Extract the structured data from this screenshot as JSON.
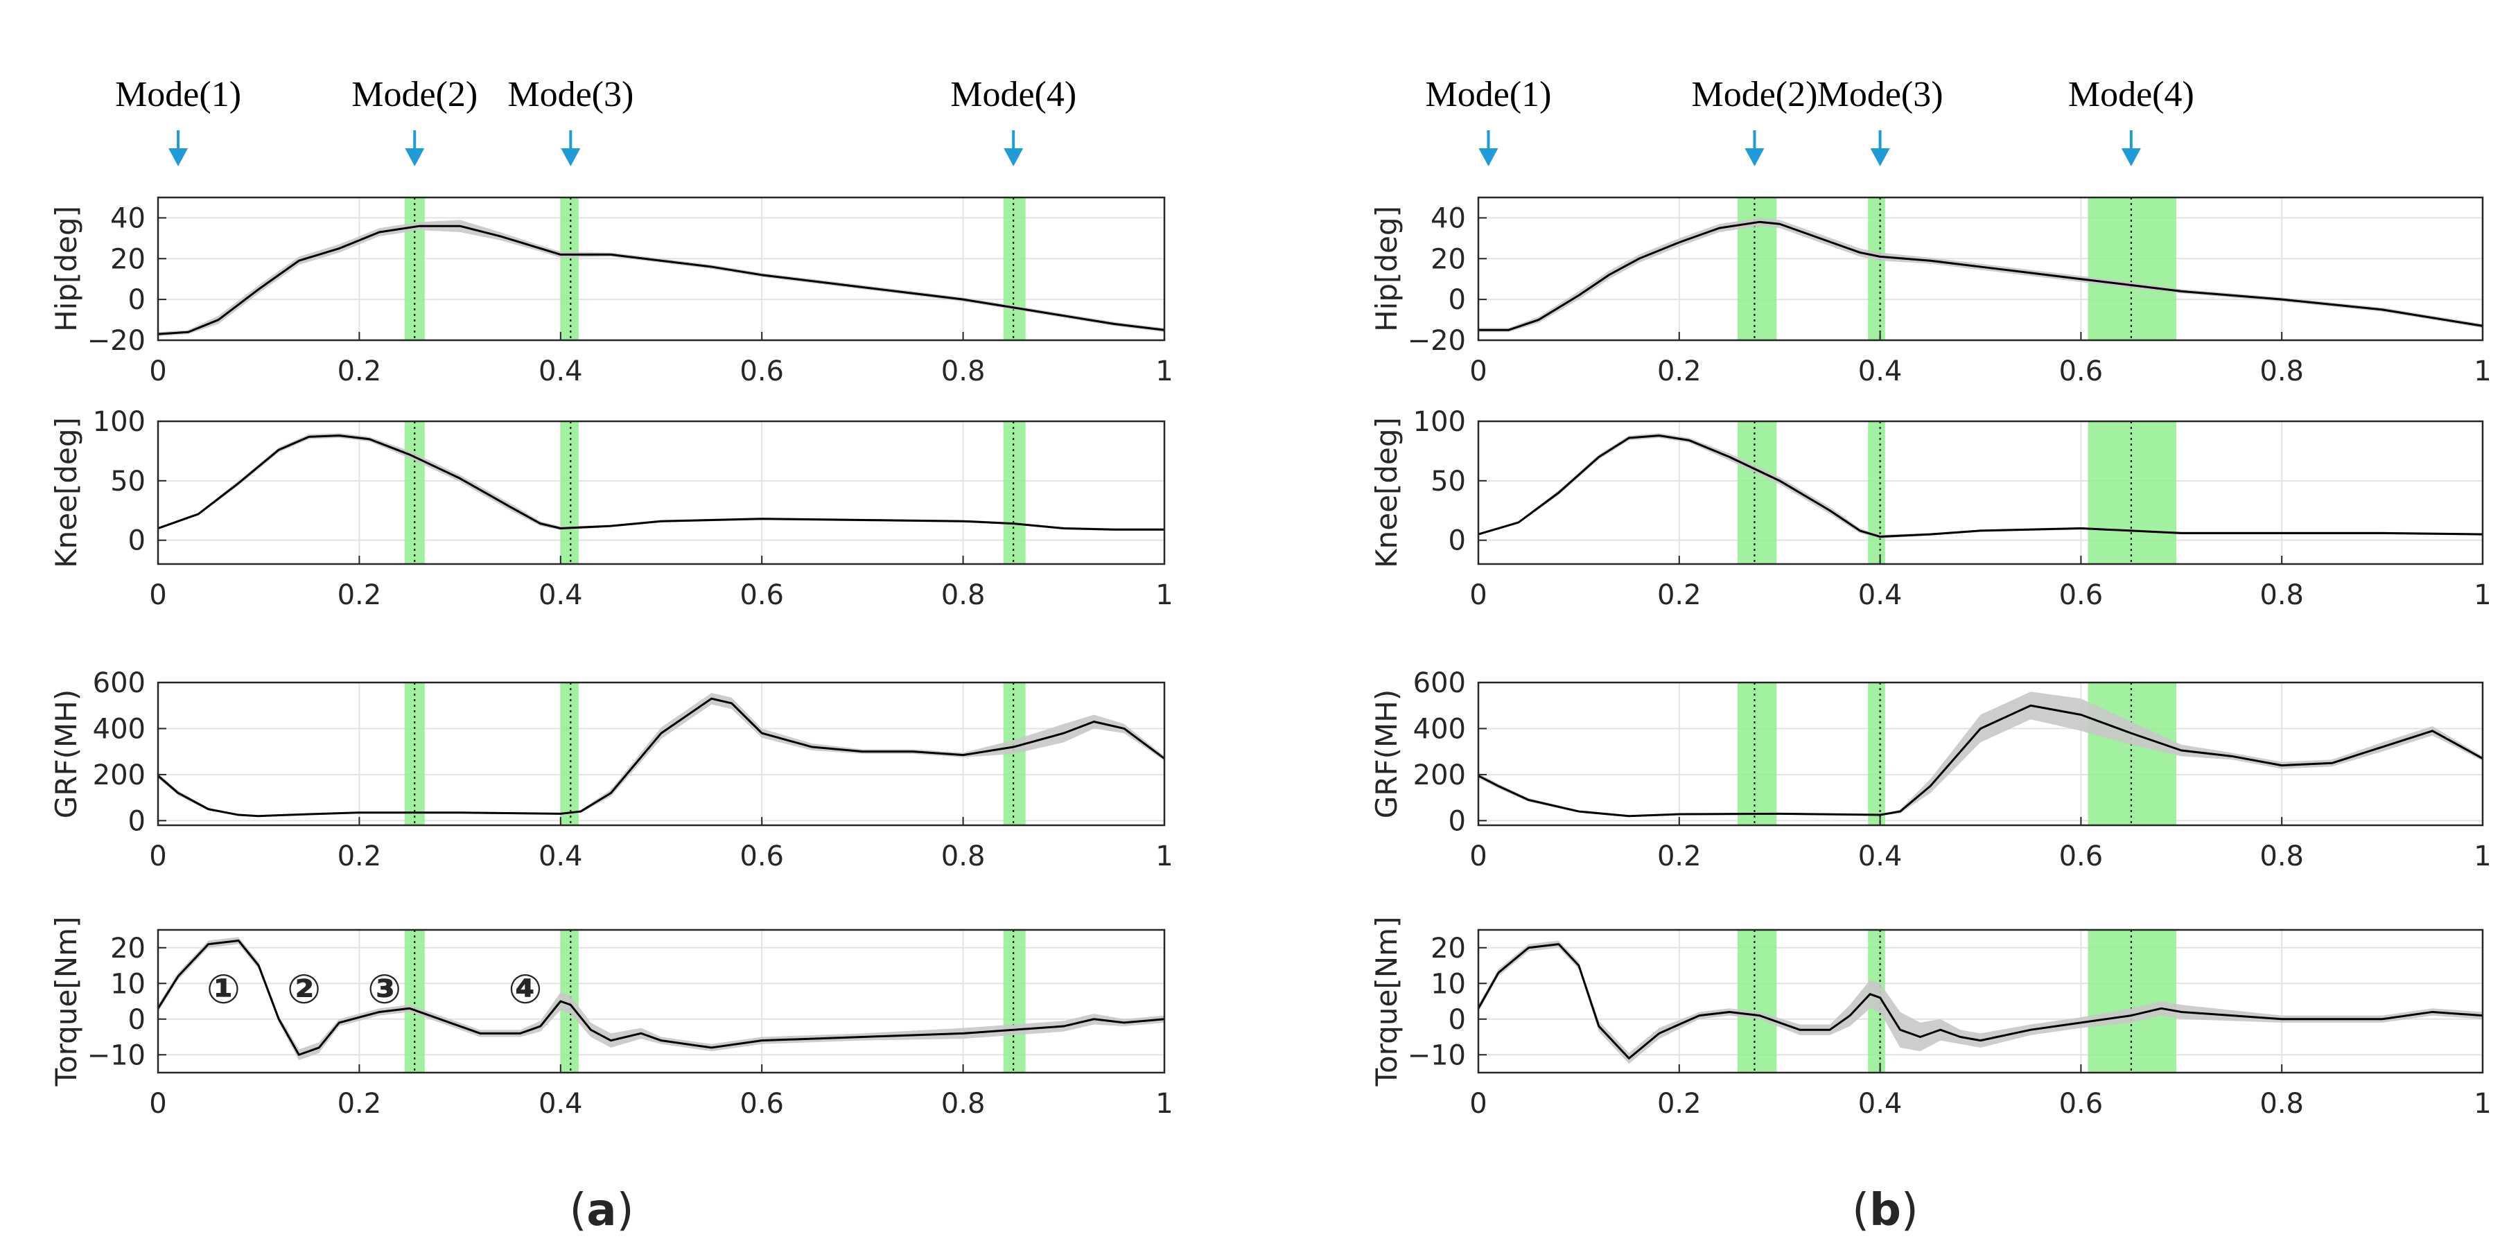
{
  "figure": {
    "panel_labels": [
      "(a)",
      "(b)"
    ],
    "mode_arrow_color": "#1f9bd7",
    "mode_band_color": "#90ee90",
    "confidence_band_color": "#c8c8c8",
    "line_color": "#000000"
  },
  "chart_data": [
    {
      "panel": "(a)",
      "mode_labels": [
        "Mode(1)",
        "Mode(2)",
        "Mode(3)",
        "Mode(4)"
      ],
      "mode_positions": [
        0.02,
        0.255,
        0.41,
        0.85
      ],
      "mode_bands": [
        [
          0.245,
          0.265
        ],
        [
          0.4,
          0.418
        ],
        [
          0.84,
          0.862
        ]
      ],
      "subplots": [
        {
          "type": "line",
          "ylabel": "Hip[deg]",
          "ylim": [
            -20,
            50
          ],
          "yticks": [
            -20,
            0,
            20,
            40
          ],
          "xlim": [
            0,
            1
          ],
          "xticks": [
            0,
            0.2,
            0.4,
            0.6,
            0.8,
            1
          ],
          "x": [
            0,
            0.03,
            0.06,
            0.1,
            0.14,
            0.18,
            0.22,
            0.26,
            0.3,
            0.34,
            0.38,
            0.4,
            0.45,
            0.5,
            0.55,
            0.6,
            0.7,
            0.8,
            0.85,
            0.9,
            0.95,
            1.0
          ],
          "values": [
            -17,
            -16,
            -10,
            5,
            19,
            25,
            33,
            36,
            36,
            31,
            25,
            22,
            22,
            19,
            16,
            12,
            6,
            0,
            -4,
            -8,
            -12,
            -15
          ],
          "spread": [
            1,
            1,
            2,
            2,
            2,
            2,
            2,
            2,
            3,
            2,
            1.5,
            1.5,
            1,
            1,
            1,
            1,
            1,
            1,
            1,
            1,
            1,
            1
          ]
        },
        {
          "type": "line",
          "ylabel": "Knee[deg]",
          "ylim": [
            -20,
            100
          ],
          "yticks": [
            0,
            50,
            100
          ],
          "xlim": [
            0,
            1
          ],
          "xticks": [
            0,
            0.2,
            0.4,
            0.6,
            0.8,
            1
          ],
          "x": [
            0,
            0.04,
            0.08,
            0.12,
            0.15,
            0.18,
            0.21,
            0.25,
            0.3,
            0.35,
            0.38,
            0.4,
            0.45,
            0.5,
            0.6,
            0.7,
            0.8,
            0.85,
            0.9,
            0.95,
            1.0
          ],
          "values": [
            10,
            22,
            48,
            76,
            87,
            88,
            85,
            72,
            52,
            28,
            14,
            10,
            12,
            16,
            18,
            17,
            16,
            14,
            10,
            9,
            9
          ],
          "spread": [
            1,
            1,
            2,
            2,
            2,
            2,
            2,
            3,
            3,
            3,
            2,
            1.5,
            1,
            1,
            1,
            1,
            1,
            1,
            1,
            1,
            1
          ]
        },
        {
          "type": "line",
          "ylabel": "GRF(MH)",
          "ylim": [
            -20,
            600
          ],
          "yticks": [
            0,
            200,
            400,
            600
          ],
          "xlim": [
            0,
            1
          ],
          "xticks": [
            0,
            0.2,
            0.4,
            0.6,
            0.8,
            1
          ],
          "x": [
            0,
            0.02,
            0.05,
            0.08,
            0.1,
            0.15,
            0.2,
            0.3,
            0.4,
            0.42,
            0.45,
            0.5,
            0.55,
            0.57,
            0.6,
            0.65,
            0.7,
            0.75,
            0.8,
            0.85,
            0.9,
            0.93,
            0.96,
            1.0
          ],
          "values": [
            195,
            120,
            50,
            25,
            20,
            28,
            35,
            35,
            30,
            40,
            120,
            380,
            530,
            510,
            380,
            320,
            300,
            300,
            285,
            320,
            380,
            430,
            400,
            270
          ],
          "spread": [
            10,
            10,
            6,
            4,
            4,
            4,
            4,
            4,
            4,
            6,
            15,
            25,
            25,
            25,
            20,
            15,
            10,
            10,
            10,
            30,
            40,
            30,
            20,
            10
          ]
        },
        {
          "type": "line",
          "ylabel": "Torque[Nm]",
          "ylim": [
            -15,
            25
          ],
          "yticks": [
            -10,
            0,
            10,
            20
          ],
          "xlim": [
            0,
            1
          ],
          "xticks": [
            0,
            0.2,
            0.4,
            0.6,
            0.8,
            1
          ],
          "x": [
            0,
            0.02,
            0.05,
            0.08,
            0.1,
            0.12,
            0.14,
            0.16,
            0.18,
            0.22,
            0.25,
            0.28,
            0.32,
            0.36,
            0.38,
            0.4,
            0.41,
            0.43,
            0.45,
            0.48,
            0.5,
            0.55,
            0.6,
            0.7,
            0.8,
            0.9,
            0.93,
            0.96,
            1.0
          ],
          "values": [
            3,
            12,
            21,
            22,
            15,
            0,
            -10,
            -8,
            -1,
            2,
            3,
            0,
            -4,
            -4,
            -2,
            5,
            4,
            -3,
            -6,
            -4,
            -6,
            -8,
            -6,
            -5,
            -4,
            -2,
            0,
            -1,
            0
          ],
          "spread": [
            1,
            1,
            1,
            1,
            1,
            1,
            1.5,
            1.5,
            1,
            1,
            1,
            1,
            1,
            1,
            1.5,
            2.5,
            2.5,
            2,
            2,
            1.5,
            1,
            1,
            1,
            1,
            1.5,
            1.5,
            1.5,
            1,
            1
          ],
          "annotations": [
            {
              "label": "①",
              "x": 0.065,
              "y": 8
            },
            {
              "label": "②",
              "x": 0.145,
              "y": 8
            },
            {
              "label": "③",
              "x": 0.225,
              "y": 8
            },
            {
              "label": "④",
              "x": 0.365,
              "y": 8
            }
          ]
        }
      ]
    },
    {
      "panel": "(b)",
      "mode_labels": [
        "Mode(1)",
        "Mode(2)",
        "Mode(3)",
        "Mode(4)"
      ],
      "mode_positions": [
        0.01,
        0.275,
        0.4,
        0.65
      ],
      "mode_bands": [
        [
          0.258,
          0.297
        ],
        [
          0.388,
          0.405
        ],
        [
          0.607,
          0.695
        ]
      ],
      "subplots": [
        {
          "type": "line",
          "ylabel": "Hip[deg]",
          "ylim": [
            -20,
            50
          ],
          "yticks": [
            -20,
            0,
            20,
            40
          ],
          "xlim": [
            0,
            1
          ],
          "xticks": [
            0,
            0.2,
            0.4,
            0.6,
            0.8,
            1
          ],
          "x": [
            0,
            0.03,
            0.06,
            0.1,
            0.13,
            0.16,
            0.2,
            0.24,
            0.28,
            0.3,
            0.34,
            0.38,
            0.4,
            0.45,
            0.5,
            0.55,
            0.6,
            0.65,
            0.7,
            0.8,
            0.9,
            1.0
          ],
          "values": [
            -15,
            -15,
            -10,
            2,
            12,
            20,
            28,
            35,
            38,
            37,
            30,
            23,
            21,
            19,
            16,
            13,
            10,
            7,
            4,
            0,
            -5,
            -13
          ],
          "spread": [
            1,
            1,
            1.5,
            2,
            2,
            2,
            2,
            2,
            2,
            2,
            2,
            2,
            2,
            1.5,
            1.5,
            1.5,
            1.5,
            1.5,
            1,
            1,
            1,
            1
          ]
        },
        {
          "type": "line",
          "ylabel": "Knee[deg]",
          "ylim": [
            -20,
            100
          ],
          "yticks": [
            0,
            50,
            100
          ],
          "xlim": [
            0,
            1
          ],
          "xticks": [
            0,
            0.2,
            0.4,
            0.6,
            0.8,
            1
          ],
          "x": [
            0,
            0.04,
            0.08,
            0.12,
            0.15,
            0.18,
            0.21,
            0.25,
            0.3,
            0.35,
            0.38,
            0.4,
            0.45,
            0.5,
            0.6,
            0.65,
            0.7,
            0.8,
            0.9,
            1.0
          ],
          "values": [
            5,
            15,
            40,
            70,
            86,
            88,
            84,
            70,
            50,
            25,
            8,
            3,
            5,
            8,
            10,
            8,
            6,
            6,
            6,
            5
          ],
          "spread": [
            1,
            1,
            2,
            2,
            2,
            2,
            2,
            3,
            3,
            3,
            2,
            1.5,
            1,
            1,
            1,
            1,
            1,
            1,
            1,
            1
          ]
        },
        {
          "type": "line",
          "ylabel": "GRF(MH)",
          "ylim": [
            -20,
            600
          ],
          "yticks": [
            0,
            200,
            400,
            600
          ],
          "xlim": [
            0,
            1
          ],
          "xticks": [
            0,
            0.2,
            0.4,
            0.6,
            0.8,
            1
          ],
          "x": [
            0,
            0.02,
            0.05,
            0.1,
            0.15,
            0.2,
            0.3,
            0.4,
            0.42,
            0.45,
            0.5,
            0.55,
            0.6,
            0.65,
            0.7,
            0.75,
            0.8,
            0.85,
            0.9,
            0.95,
            1.0
          ],
          "values": [
            195,
            150,
            90,
            40,
            20,
            28,
            30,
            25,
            40,
            150,
            400,
            500,
            460,
            380,
            305,
            280,
            240,
            250,
            320,
            390,
            270
          ],
          "spread": [
            10,
            10,
            8,
            5,
            4,
            4,
            4,
            4,
            8,
            30,
            60,
            60,
            70,
            50,
            25,
            15,
            15,
            15,
            20,
            20,
            10
          ]
        },
        {
          "type": "line",
          "ylabel": "Torque[Nm]",
          "ylim": [
            -15,
            25
          ],
          "yticks": [
            -10,
            0,
            10,
            20
          ],
          "xlim": [
            0,
            1
          ],
          "xticks": [
            0,
            0.2,
            0.4,
            0.6,
            0.8,
            1
          ],
          "x": [
            0,
            0.02,
            0.05,
            0.08,
            0.1,
            0.12,
            0.15,
            0.18,
            0.22,
            0.25,
            0.28,
            0.32,
            0.35,
            0.37,
            0.39,
            0.4,
            0.42,
            0.44,
            0.46,
            0.48,
            0.5,
            0.55,
            0.6,
            0.65,
            0.68,
            0.7,
            0.8,
            0.9,
            0.95,
            1.0
          ],
          "values": [
            3,
            13,
            20,
            21,
            15,
            -2,
            -11,
            -4,
            1,
            2,
            1,
            -3,
            -3,
            1,
            7,
            6,
            -3,
            -5,
            -3,
            -5,
            -6,
            -3,
            -1,
            1,
            3,
            2,
            0,
            0,
            2,
            1
          ],
          "spread": [
            1,
            1,
            1,
            1,
            1,
            1.5,
            1.5,
            1.5,
            1,
            1,
            1,
            1.5,
            1.5,
            3,
            4,
            4,
            5,
            4,
            3,
            2,
            2,
            1.5,
            1.5,
            2,
            2,
            2,
            1,
            1,
            1,
            1
          ]
        }
      ]
    }
  ]
}
